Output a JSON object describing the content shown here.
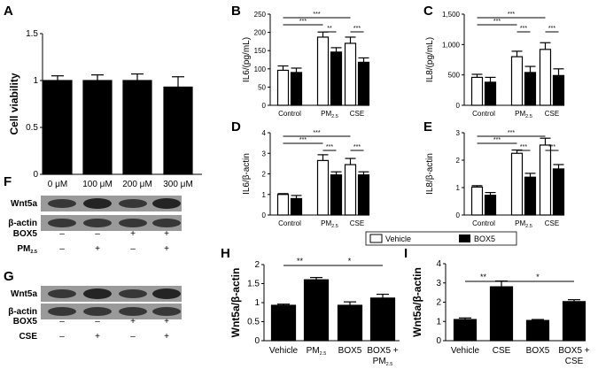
{
  "panel_labels": {
    "A": "A",
    "B": "B",
    "C": "C",
    "D": "D",
    "E": "E",
    "F": "F",
    "G": "G",
    "H": "H",
    "I": "I"
  },
  "legend": {
    "vehicle": "Vehicle",
    "box5": "BOX5"
  },
  "colors": {
    "dark": "#000000",
    "light": "#ffffff",
    "blot_bg": "#9a9a9a",
    "blot_band": "#1e1e1e"
  },
  "chart_data": [
    {
      "panel": "A",
      "type": "bar",
      "ylabel": "Cell viability",
      "ylim": [
        0,
        1.5
      ],
      "yticks": [
        "0",
        "0.5",
        "1",
        "1.5"
      ],
      "categories": [
        "0 μM",
        "100 μM",
        "200 μM",
        "300 μM"
      ],
      "series": [
        {
          "values": [
            1.0,
            1.0,
            1.0,
            0.93
          ],
          "errors": [
            0.05,
            0.06,
            0.07,
            0.11
          ]
        }
      ]
    },
    {
      "panel": "B",
      "type": "bar",
      "ylabel": "IL6/(pg/mL)",
      "ylim": [
        0,
        250
      ],
      "yticks": [
        "0",
        "50",
        "100",
        "150",
        "200",
        "250"
      ],
      "categories": [
        "Control",
        "PM2.5",
        "CSE"
      ],
      "series": [
        {
          "name": "Vehicle",
          "values": [
            96,
            187,
            170
          ],
          "errors": [
            12,
            14,
            17
          ]
        },
        {
          "name": "BOX5",
          "values": [
            90,
            146,
            118
          ],
          "errors": [
            12,
            12,
            12
          ]
        }
      ],
      "sig": [
        [
          "***",
          0,
          0,
          2,
          0,
          3
        ],
        [
          "***",
          0,
          0,
          1,
          0,
          2
        ],
        [
          "**",
          1,
          0,
          1,
          1,
          1
        ],
        [
          "***",
          2,
          0,
          2,
          1,
          1
        ]
      ]
    },
    {
      "panel": "C",
      "type": "bar",
      "ylabel": "IL8/(pg/mL)",
      "ylim": [
        0,
        1500
      ],
      "yticks": [
        "0",
        "500",
        "1,000",
        "1,500"
      ],
      "categories": [
        "Control",
        "PM2.5",
        "CSE"
      ],
      "series": [
        {
          "name": "Vehicle",
          "values": [
            460,
            800,
            920
          ],
          "errors": [
            50,
            90,
            110
          ]
        },
        {
          "name": "BOX5",
          "values": [
            380,
            540,
            490
          ],
          "errors": [
            80,
            100,
            110
          ]
        }
      ],
      "sig": [
        [
          "***",
          0,
          0,
          2,
          0,
          3
        ],
        [
          "***",
          0,
          0,
          1,
          0,
          2
        ],
        [
          "***",
          1,
          0,
          1,
          1,
          1
        ],
        [
          "***",
          2,
          0,
          2,
          1,
          1
        ]
      ]
    },
    {
      "panel": "D",
      "type": "bar",
      "ylabel": "IL6/β-actin",
      "ylim": [
        0,
        4
      ],
      "yticks": [
        "0",
        "1",
        "2",
        "3",
        "4"
      ],
      "categories": [
        "Control",
        "PM2.5",
        "CSE"
      ],
      "series": [
        {
          "name": "Vehicle",
          "values": [
            1.0,
            2.65,
            2.45
          ],
          "errors": [
            0.04,
            0.28,
            0.3
          ]
        },
        {
          "name": "BOX5",
          "values": [
            0.8,
            1.95,
            1.95
          ],
          "errors": [
            0.15,
            0.15,
            0.15
          ]
        }
      ],
      "sig": [
        [
          "***",
          0,
          0,
          2,
          0,
          3
        ],
        [
          "***",
          0,
          0,
          1,
          0,
          2
        ],
        [
          "***",
          1,
          0,
          1,
          1,
          1
        ],
        [
          "***",
          2,
          0,
          2,
          1,
          1
        ]
      ]
    },
    {
      "panel": "E",
      "type": "bar",
      "ylabel": "IL8/β-actin",
      "ylim": [
        0,
        3
      ],
      "yticks": [
        "0",
        "1",
        "2",
        "3"
      ],
      "categories": [
        "Control",
        "PM2.5",
        "CSE"
      ],
      "series": [
        {
          "name": "Vehicle",
          "values": [
            1.02,
            2.25,
            2.55
          ],
          "errors": [
            0.05,
            0.12,
            0.25
          ]
        },
        {
          "name": "BOX5",
          "values": [
            0.72,
            1.38,
            1.68
          ],
          "errors": [
            0.1,
            0.14,
            0.16
          ]
        }
      ],
      "sig": [
        [
          "***",
          0,
          0,
          2,
          0,
          3
        ],
        [
          "***",
          0,
          0,
          1,
          0,
          2
        ],
        [
          "***",
          1,
          0,
          1,
          1,
          1
        ],
        [
          "***",
          2,
          0,
          2,
          1,
          1
        ]
      ]
    },
    {
      "panel": "H",
      "type": "bar",
      "ylabel": "Wnt5a/β-actin",
      "ylim": [
        0,
        2
      ],
      "yticks": [
        "0",
        "0.5",
        "1",
        "1.5",
        "2"
      ],
      "categories": [
        "Vehicle",
        "PM2.5",
        "BOX5",
        "BOX5 + PM2.5"
      ],
      "series": [
        {
          "values": [
            0.93,
            1.6,
            0.93,
            1.12
          ],
          "errors": [
            0.03,
            0.06,
            0.09,
            0.1
          ]
        }
      ],
      "sig": [
        [
          "**",
          0,
          0,
          1,
          0,
          1
        ],
        [
          "*",
          1,
          0,
          3,
          0,
          1
        ]
      ]
    },
    {
      "panel": "I",
      "type": "bar",
      "ylabel": "Wnt5a/β-actin",
      "ylim": [
        0,
        4
      ],
      "yticks": [
        "0",
        "1",
        "2",
        "3",
        "4"
      ],
      "categories": [
        "Vehicle",
        "CSE",
        "BOX5",
        "BOX5 + CSE"
      ],
      "series": [
        {
          "values": [
            1.1,
            2.8,
            1.05,
            2.03
          ],
          "errors": [
            0.08,
            0.3,
            0.05,
            0.1
          ]
        }
      ],
      "sig": [
        [
          "**",
          0,
          0,
          1,
          0,
          1
        ],
        [
          "*",
          1,
          0,
          3,
          0,
          1
        ]
      ]
    }
  ],
  "blots": [
    {
      "panel": "F",
      "rows": [
        "Wnt5a",
        "β-actin"
      ],
      "treatments": [
        {
          "label": "BOX5",
          "marks": [
            "–",
            "–",
            "+",
            "+"
          ]
        },
        {
          "label": "PM2.5",
          "marks": [
            "–",
            "+",
            "–",
            "+"
          ]
        }
      ]
    },
    {
      "panel": "G",
      "rows": [
        "Wnt5a",
        "β-actin"
      ],
      "treatments": [
        {
          "label": "BOX5",
          "marks": [
            "–",
            "–",
            "+",
            "+"
          ]
        },
        {
          "label": "CSE",
          "marks": [
            "–",
            "+",
            "–",
            "+"
          ]
        }
      ]
    }
  ]
}
